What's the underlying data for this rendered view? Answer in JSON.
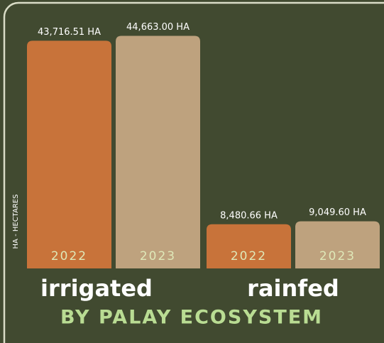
{
  "chart_data": {
    "type": "bar",
    "title": "BY PALAY ECOSYSTEM",
    "y_label": "HA - HECTARES",
    "categories": [
      "irrigated",
      "rainfed"
    ],
    "series": [
      {
        "name": "2022",
        "color": "#c8733a",
        "values": [
          43716.51,
          8480.66
        ],
        "value_labels": [
          "43,716.51 HA",
          "8,480.66 HA"
        ]
      },
      {
        "name": "2023",
        "color": "#bea27e",
        "values": [
          44663.0,
          9049.6
        ],
        "value_labels": [
          "44,663.00 HA",
          "9,049.60 HA"
        ]
      }
    ],
    "ylim": [
      0,
      45000
    ]
  }
}
